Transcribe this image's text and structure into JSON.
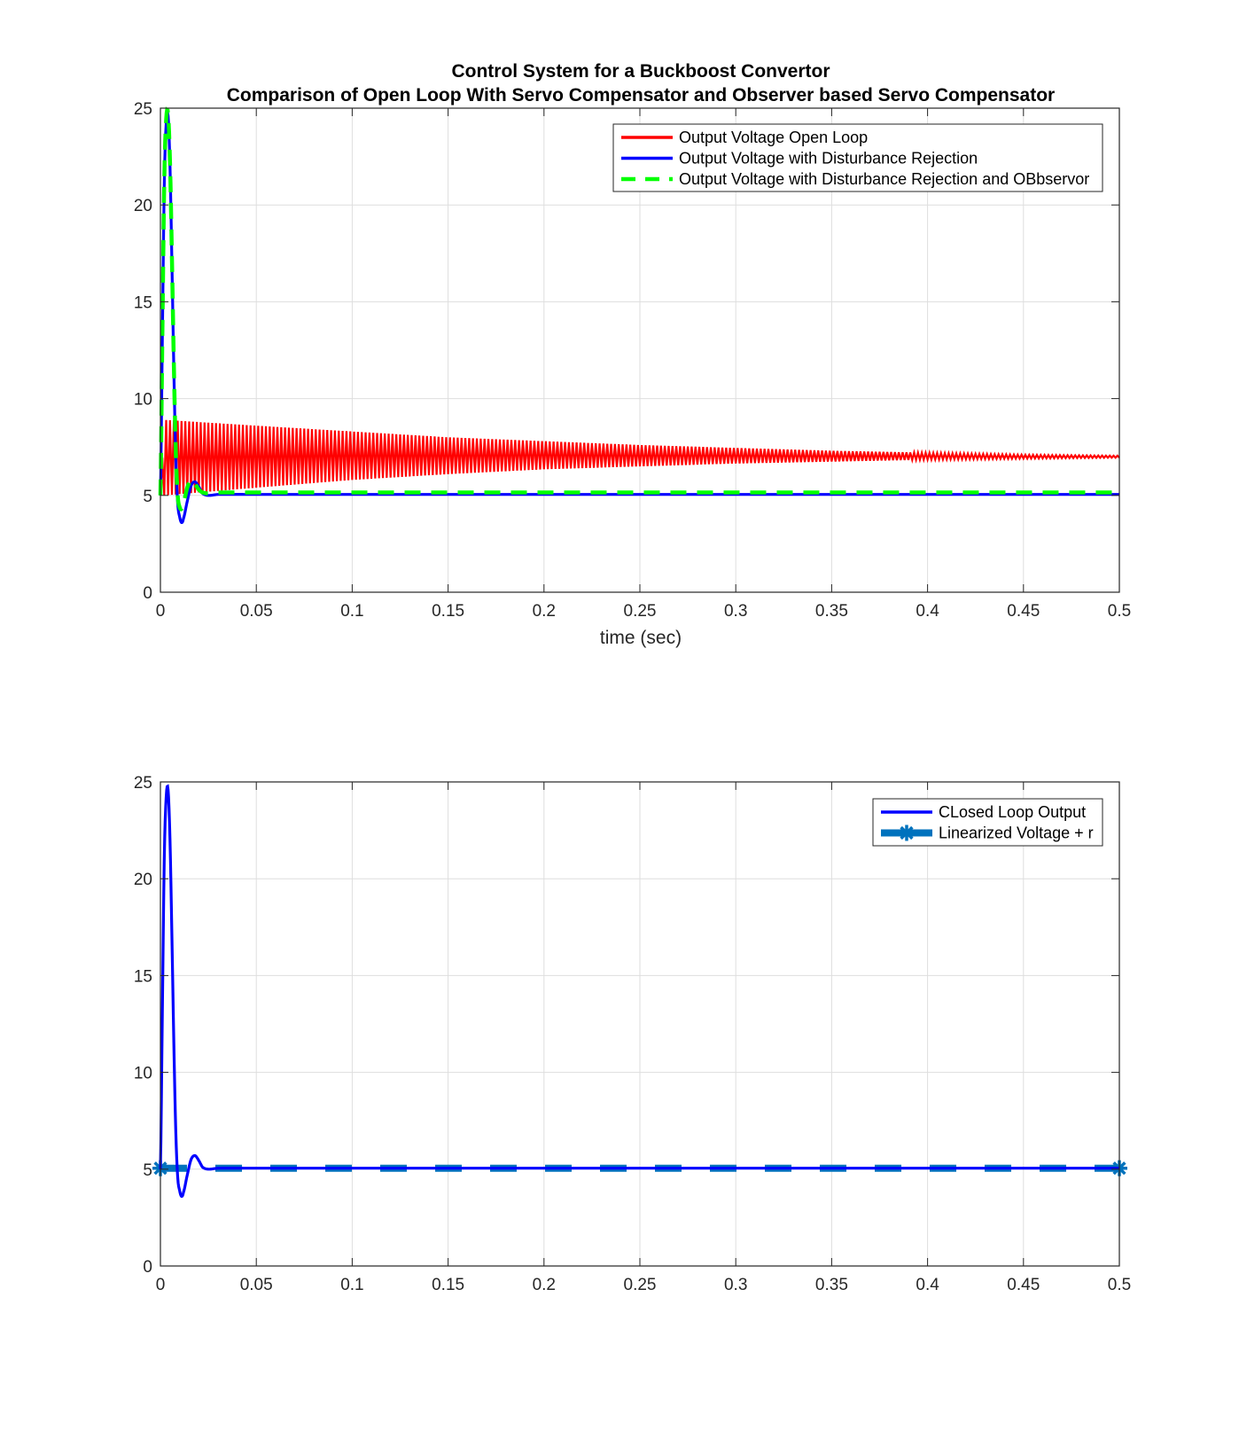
{
  "chart_data": [
    {
      "type": "line",
      "title": "Control System for a Buckboost Convertor",
      "subtitle": "Comparison of Open Loop With Servo Compensator and Observer based Servo Compensator",
      "xlabel": "time (sec)",
      "ylabel": "",
      "xlim": [
        0,
        0.5
      ],
      "ylim": [
        0,
        25
      ],
      "xticks": [
        "0",
        "0.05",
        "0.1",
        "0.15",
        "0.2",
        "0.25",
        "0.3",
        "0.35",
        "0.4",
        "0.45",
        "0.5"
      ],
      "yticks": [
        "0",
        "5",
        "10",
        "15",
        "20",
        "25"
      ],
      "grid": true,
      "legend_position": "top-right",
      "series": [
        {
          "name": "Output Voltage Open Loop",
          "color": "#ff0000",
          "style": "solid",
          "kind": "oscillating-envelope",
          "x": [
            0,
            0.002,
            0.05,
            0.1,
            0.15,
            0.2,
            0.25,
            0.3,
            0.35,
            0.4,
            0.45,
            0.5
          ],
          "upper": [
            5.0,
            8.9,
            8.6,
            8.3,
            8.0,
            7.8,
            7.6,
            7.45,
            7.3,
            7.2,
            7.1,
            7.05
          ],
          "lower": [
            5.0,
            5.0,
            5.4,
            5.8,
            6.1,
            6.35,
            6.5,
            6.65,
            6.75,
            6.85,
            6.9,
            6.95
          ]
        },
        {
          "name": "Output Voltage with Disturbance Rejection",
          "color": "#0000ff",
          "style": "solid",
          "x": [
            0,
            0.001,
            0.002,
            0.003,
            0.004,
            0.005,
            0.006,
            0.007,
            0.008,
            0.009,
            0.01,
            0.011,
            0.012,
            0.014,
            0.016,
            0.018,
            0.02,
            0.022,
            0.025,
            0.03,
            0.05,
            0.1,
            0.2,
            0.3,
            0.4,
            0.5
          ],
          "y": [
            5.0,
            13.0,
            21.0,
            24.2,
            24.6,
            22.0,
            17.0,
            11.5,
            7.0,
            4.6,
            3.9,
            3.6,
            3.8,
            4.7,
            5.5,
            5.7,
            5.45,
            5.1,
            5.0,
            5.05,
            5.05,
            5.05,
            5.05,
            5.05,
            5.05,
            5.05
          ]
        },
        {
          "name": "Output Voltage with Disturbance Rejection and OBbservor",
          "color": "#00ff00",
          "style": "dashed",
          "x": [
            0,
            0.001,
            0.002,
            0.003,
            0.004,
            0.005,
            0.006,
            0.007,
            0.008,
            0.009,
            0.01,
            0.011,
            0.012,
            0.014,
            0.016,
            0.018,
            0.02,
            0.022,
            0.025,
            0.03,
            0.05,
            0.1,
            0.2,
            0.3,
            0.4,
            0.5
          ],
          "y": [
            5.0,
            13.2,
            21.2,
            24.4,
            24.7,
            22.2,
            17.3,
            11.8,
            7.3,
            5.0,
            4.4,
            4.3,
            4.6,
            5.4,
            5.8,
            5.6,
            5.3,
            5.15,
            5.1,
            5.15,
            5.15,
            5.15,
            5.15,
            5.15,
            5.15,
            5.15
          ]
        }
      ]
    },
    {
      "type": "line",
      "title": "",
      "xlabel": "",
      "ylabel": "",
      "xlim": [
        0,
        0.5
      ],
      "ylim": [
        0,
        25
      ],
      "xticks": [
        "0",
        "0.05",
        "0.1",
        "0.15",
        "0.2",
        "0.25",
        "0.3",
        "0.35",
        "0.4",
        "0.45",
        "0.5"
      ],
      "yticks": [
        "0",
        "5",
        "10",
        "15",
        "20",
        "25"
      ],
      "grid": true,
      "legend_position": "top-right",
      "series": [
        {
          "name": "CLosed Loop Output",
          "color": "#0000ff",
          "style": "solid",
          "x": [
            0,
            0.001,
            0.002,
            0.003,
            0.004,
            0.005,
            0.006,
            0.007,
            0.008,
            0.009,
            0.01,
            0.011,
            0.012,
            0.014,
            0.016,
            0.018,
            0.02,
            0.022,
            0.025,
            0.03,
            0.05,
            0.1,
            0.2,
            0.3,
            0.4,
            0.5
          ],
          "y": [
            5.0,
            13.0,
            21.0,
            24.2,
            24.6,
            22.0,
            17.0,
            11.5,
            7.0,
            4.6,
            3.9,
            3.6,
            3.8,
            4.7,
            5.5,
            5.7,
            5.45,
            5.1,
            5.0,
            5.05,
            5.05,
            5.05,
            5.05,
            5.05,
            5.05,
            5.05
          ]
        },
        {
          "name": "Linearized Voltage + r",
          "color": "#0072bd",
          "style": "dashed-thick",
          "marker": "asterisk",
          "x": [
            0,
            0.5
          ],
          "y": [
            5.05,
            5.05
          ]
        }
      ]
    }
  ]
}
